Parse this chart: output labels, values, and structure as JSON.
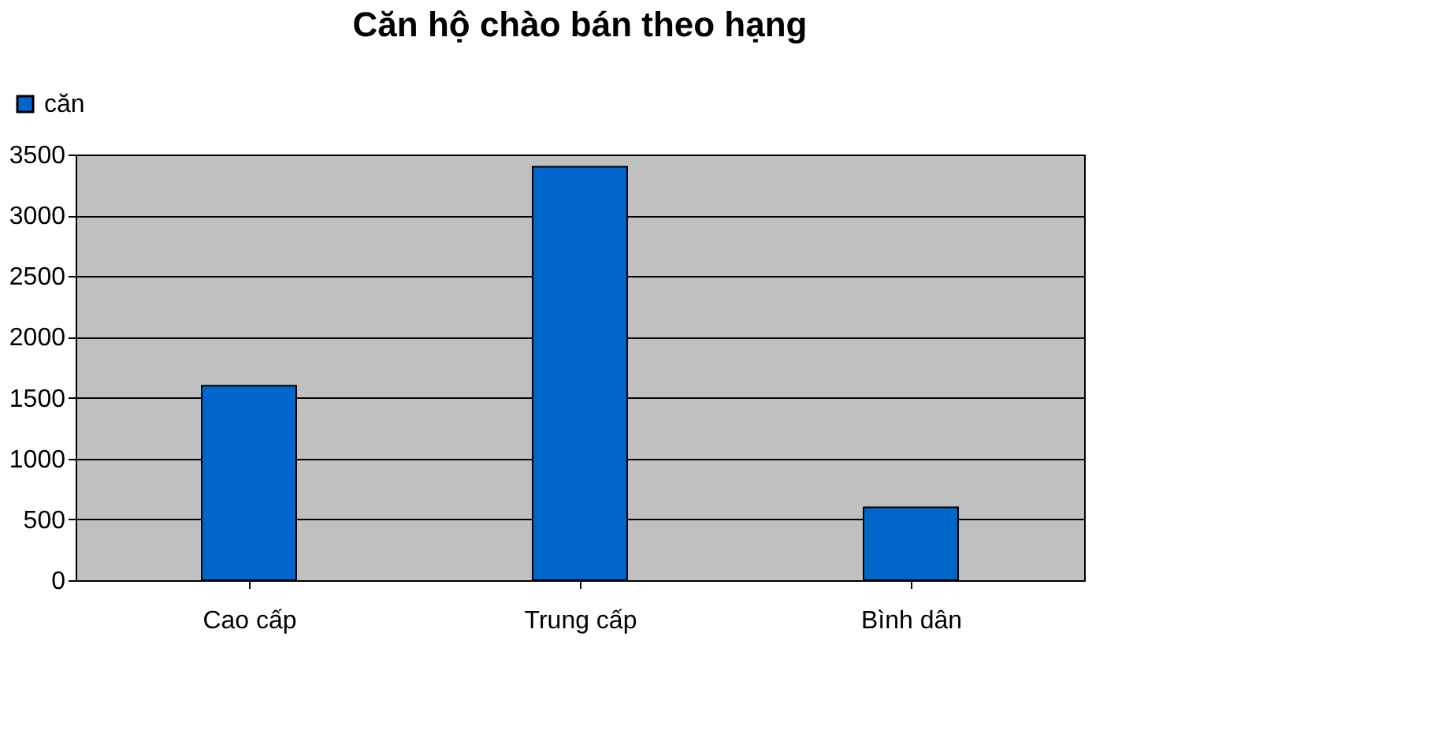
{
  "chart_data": {
    "type": "bar",
    "title": "Căn hộ chào bán theo hạng",
    "categories": [
      "Cao cấp",
      "Trung cấp",
      "Bình dân"
    ],
    "series": [
      {
        "name": "căn",
        "color": "#0066cc",
        "values": [
          1600,
          3400,
          600
        ]
      }
    ],
    "ylim": [
      0,
      3500
    ],
    "yticks": [
      0,
      500,
      1000,
      1500,
      2000,
      2500,
      3000,
      3500
    ],
    "grid": "y",
    "legend": "top left"
  }
}
